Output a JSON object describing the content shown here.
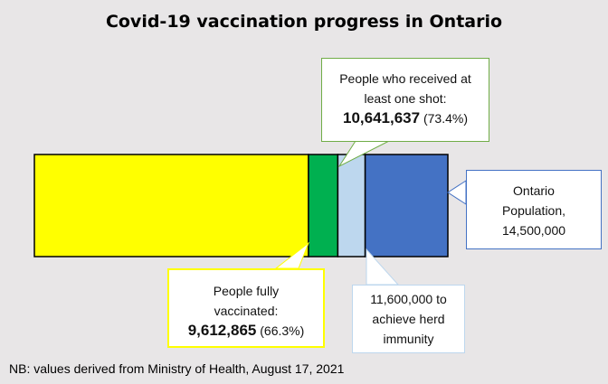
{
  "chart_data": {
    "type": "bar",
    "orientation": "horizontal-stacked",
    "title": "Covid-19 vaccination progress in Ontario",
    "total": 14500000,
    "segments": [
      {
        "label": "People fully vaccinated",
        "value": 9612865,
        "percent": "66.3%",
        "color": "#ffff00"
      },
      {
        "label": "People who received at least one shot",
        "value": 10641637,
        "percent": "73.4%",
        "color": "#00b050"
      },
      {
        "label": "to achieve herd immunity",
        "value": 11600000,
        "color": "#bdd7ee"
      },
      {
        "label": "Ontario Population",
        "value": 14500000,
        "color": "#4472c4"
      }
    ],
    "callouts": {
      "one_shot": {
        "line1": "People who received at",
        "line2": "least one shot:",
        "value": "10,641,637",
        "percent": "(73.4%)",
        "border": "#70ad47"
      },
      "population": {
        "line1": "Ontario",
        "line2": "Population,",
        "value": "14,500,000",
        "border": "#4472c4"
      },
      "fully": {
        "line1": "People fully",
        "line2": "vaccinated:",
        "value": "9,612,865",
        "percent": "(66.3%)",
        "border": "#ffff00"
      },
      "herd": {
        "line1": "11,600,000 to",
        "line2": "achieve herd",
        "line3": "immunity",
        "border": "#bdd7ee"
      }
    },
    "note": "NB: values derived from Ministry of Health, August 17, 2021"
  }
}
